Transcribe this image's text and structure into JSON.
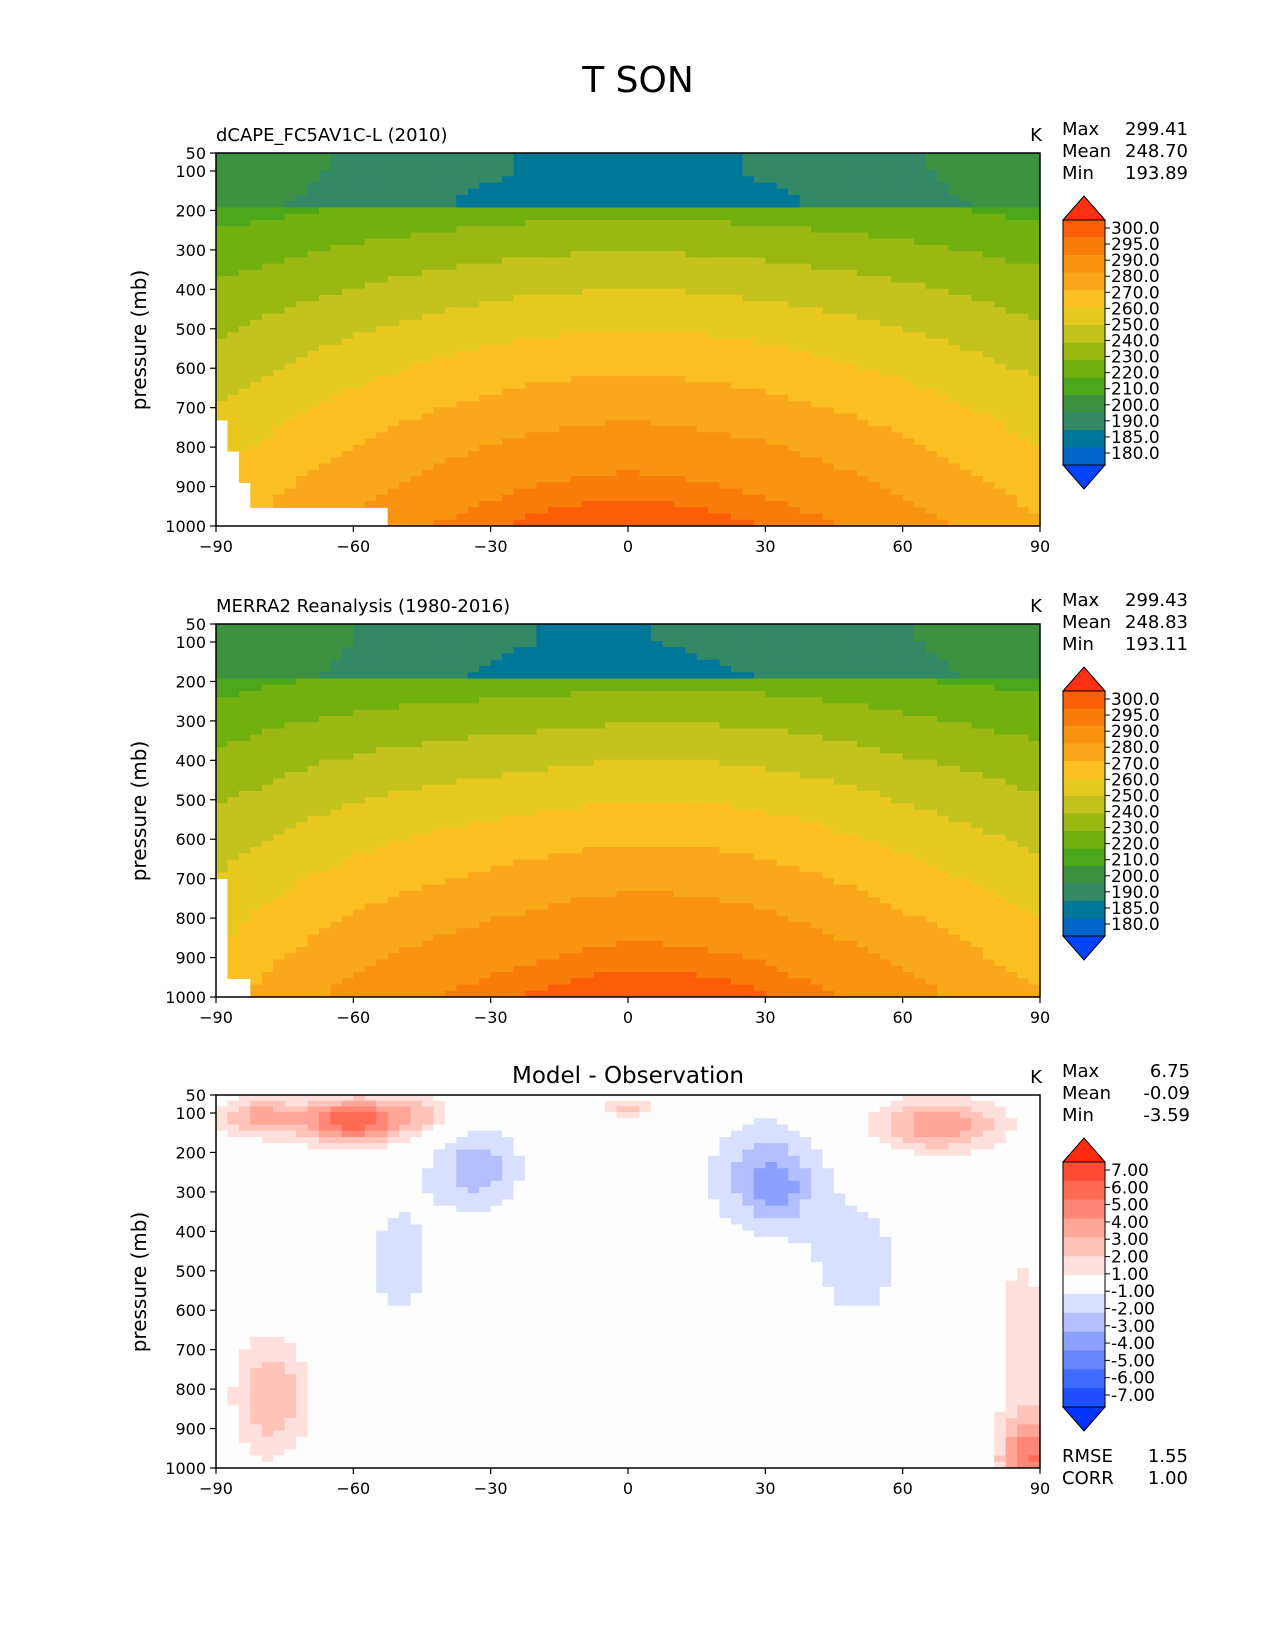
{
  "figure": {
    "title": "T SON"
  },
  "colors": {
    "temperature": [
      "#0044ff",
      "#0066cc",
      "#007799",
      "#338866",
      "#3d9140",
      "#4ca81a",
      "#72b010",
      "#9bb812",
      "#c4c31e",
      "#e6c81e",
      "#fbbf22",
      "#f9a81a",
      "#f89412",
      "#f87c0a",
      "#fb5e06",
      "#ff3112"
    ],
    "difference": [
      "#0033ff",
      "#1f4fff",
      "#3f6bff",
      "#6685ff",
      "#8ca0ff",
      "#b3bfff",
      "#d9e0ff",
      "#fdfdfd",
      "#ffe0dc",
      "#ffc3ba",
      "#ffa698",
      "#ff8777",
      "#ff6a55",
      "#ff4c33",
      "#ff2a10"
    ]
  },
  "chart_data": [
    {
      "type": "contourf",
      "panel_title": "dCAPE_FC5AV1C-L (2010)",
      "units": "K",
      "stats": {
        "max_label": "Max",
        "max": "299.41",
        "mean_label": "Mean",
        "mean": "248.70",
        "min_label": "Min",
        "min": "193.89"
      },
      "ylabel": "pressure (mb)",
      "xlim": [
        -90,
        90
      ],
      "ylim": [
        1000,
        50
      ],
      "xticks": [
        -90,
        -60,
        -30,
        0,
        30,
        60,
        90
      ],
      "xticklabels": [
        "−90",
        "−60",
        "−30",
        "0",
        "30",
        "60",
        "90"
      ],
      "yticks": [
        50,
        100,
        200,
        300,
        400,
        500,
        600,
        700,
        800,
        900,
        1000
      ],
      "yticklabels": [
        "50",
        "100",
        "200",
        "300",
        "400",
        "500",
        "600",
        "700",
        "800",
        "900",
        "1000"
      ],
      "colorbar_levels": [
        "300.0",
        "295.0",
        "290.0",
        "280.0",
        "270.0",
        "260.0",
        "250.0",
        "240.0",
        "230.0",
        "220.0",
        "210.0",
        "200.0",
        "190.0",
        "185.0",
        "180.0"
      ],
      "field": {
        "t_min": 193.89,
        "t_max": 299.41
      }
    },
    {
      "type": "contourf",
      "panel_title": "MERRA2 Reanalysis (1980-2016)",
      "units": "K",
      "stats": {
        "max_label": "Max",
        "max": "299.43",
        "mean_label": "Mean",
        "mean": "248.83",
        "min_label": "Min",
        "min": "193.11"
      },
      "ylabel": "pressure (mb)",
      "xlim": [
        -90,
        90
      ],
      "ylim": [
        1000,
        50
      ],
      "xticks": [
        -90,
        -60,
        -30,
        0,
        30,
        60,
        90
      ],
      "xticklabels": [
        "−90",
        "−60",
        "−30",
        "0",
        "30",
        "60",
        "90"
      ],
      "yticks": [
        50,
        100,
        200,
        300,
        400,
        500,
        600,
        700,
        800,
        900,
        1000
      ],
      "yticklabels": [
        "50",
        "100",
        "200",
        "300",
        "400",
        "500",
        "600",
        "700",
        "800",
        "900",
        "1000"
      ],
      "colorbar_levels": [
        "300.0",
        "295.0",
        "290.0",
        "280.0",
        "270.0",
        "260.0",
        "250.0",
        "240.0",
        "230.0",
        "220.0",
        "210.0",
        "200.0",
        "190.0",
        "185.0",
        "180.0"
      ],
      "field": {
        "t_min": 193.11,
        "t_max": 299.43
      }
    },
    {
      "type": "contourf",
      "panel_title": "Model - Observation",
      "units": "K",
      "stats": {
        "max_label": "Max",
        "max": "6.75",
        "mean_label": "Mean",
        "mean": "-0.09",
        "min_label": "Min",
        "min": "-3.59"
      },
      "ylabel": "pressure (mb)",
      "xlim": [
        -90,
        90
      ],
      "ylim": [
        1000,
        50
      ],
      "xticks": [
        -90,
        -60,
        -30,
        0,
        30,
        60,
        90
      ],
      "xticklabels": [
        "−90",
        "−60",
        "−30",
        "0",
        "30",
        "60",
        "90"
      ],
      "yticks": [
        50,
        100,
        200,
        300,
        400,
        500,
        600,
        700,
        800,
        900,
        1000
      ],
      "yticklabels": [
        "50",
        "100",
        "200",
        "300",
        "400",
        "500",
        "600",
        "700",
        "800",
        "900",
        "1000"
      ],
      "colorbar_levels": [
        "7.00",
        "6.00",
        "5.00",
        "4.00",
        "3.00",
        "2.00",
        "1.00",
        "-1.00",
        "-2.00",
        "-3.00",
        "-4.00",
        "-5.00",
        "-6.00",
        "-7.00"
      ],
      "metrics": {
        "rmse_label": "RMSE",
        "rmse": "1.55",
        "corr_label": "CORR",
        "corr": "1.00"
      },
      "field": {
        "blobs": [
          {
            "lat": -60,
            "p": 120,
            "amp": 5.8,
            "slat": 11,
            "sp": 60
          },
          {
            "lat": -80,
            "p": 110,
            "amp": 3.5,
            "slat": 9,
            "sp": 50
          },
          {
            "lat": -45,
            "p": 100,
            "amp": 2.0,
            "slat": 8,
            "sp": 55
          },
          {
            "lat": 68,
            "p": 130,
            "amp": 3.8,
            "slat": 14,
            "sp": 70
          },
          {
            "lat": 0,
            "p": 85,
            "amp": 2.2,
            "slat": 7,
            "sp": 25
          },
          {
            "lat": -33,
            "p": 240,
            "amp": -2.6,
            "slat": 10,
            "sp": 110
          },
          {
            "lat": 30,
            "p": 260,
            "amp": -2.8,
            "slat": 12,
            "sp": 140
          },
          {
            "lat": 33,
            "p": 300,
            "amp": -1.3,
            "slat": 5,
            "sp": 70
          },
          {
            "lat": -50,
            "p": 480,
            "amp": -1.4,
            "slat": 9,
            "sp": 200
          },
          {
            "lat": 50,
            "p": 480,
            "amp": -1.4,
            "slat": 13,
            "sp": 200
          },
          {
            "lat": -78,
            "p": 820,
            "amp": 3.0,
            "slat": 8,
            "sp": 150
          },
          {
            "lat": 88,
            "p": 980,
            "amp": 5.0,
            "slat": 7,
            "sp": 120
          },
          {
            "lat": 86,
            "p": 650,
            "amp": 1.8,
            "slat": 5,
            "sp": 200
          }
        ]
      }
    }
  ]
}
